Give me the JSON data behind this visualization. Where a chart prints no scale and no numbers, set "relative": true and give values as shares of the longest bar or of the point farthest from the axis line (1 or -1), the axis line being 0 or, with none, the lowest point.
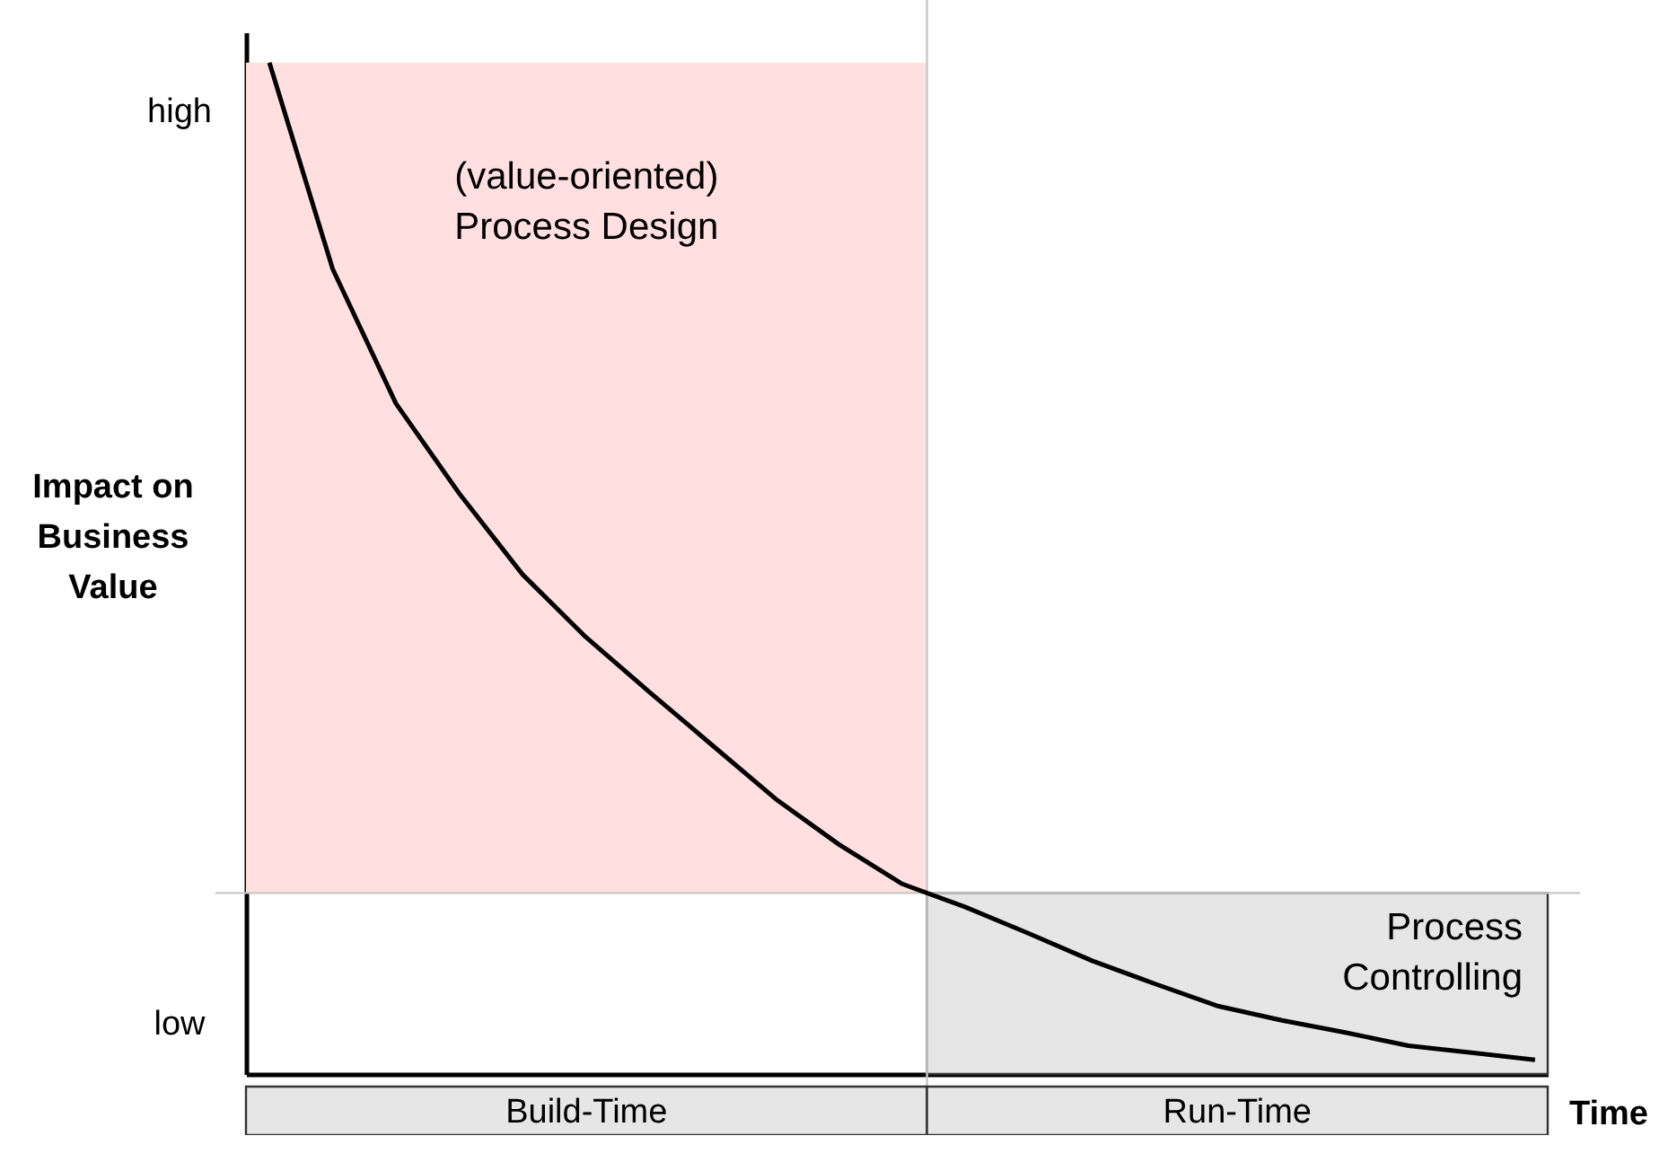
{
  "chart_data": {
    "type": "line",
    "relative": true,
    "xlabel": "Time",
    "ylabel": "Impact on\nBusiness\nValue",
    "categories": [
      null,
      null,
      null,
      null,
      null,
      null,
      null,
      null,
      null,
      null,
      null,
      null,
      null,
      null,
      null,
      null,
      null,
      null,
      null,
      null,
      null
    ],
    "series": [
      {
        "color": "#000000",
        "values": [
          1.0,
          0.796,
          0.663,
          0.574,
          0.494,
          0.432,
          0.378,
          0.325,
          0.272,
          0.227,
          0.188,
          0.165,
          0.139,
          0.112,
          0.089,
          0.067,
          0.053,
          0.041,
          0.028,
          0.021,
          0.014
        ]
      }
    ],
    "ref_lines": [
      {
        "axis": "y",
        "value": 0.179,
        "color": "#c8c8c8"
      }
    ],
    "bands": [
      {
        "axis": "y",
        "from": 0.179,
        "to": 1.0,
        "label": "(value-oriented)\nProcess Design",
        "color": "#ffdfdf"
      },
      {
        "axis": "y",
        "from": 0,
        "to": 0.179,
        "label": "Process\nControlling",
        "color": "#e6e6e6"
      }
    ],
    "annotations": [
      "high",
      "low",
      "Build-Time",
      "Run-Time"
    ],
    "grid": false,
    "marker": "none",
    "line_style": "solid"
  }
}
